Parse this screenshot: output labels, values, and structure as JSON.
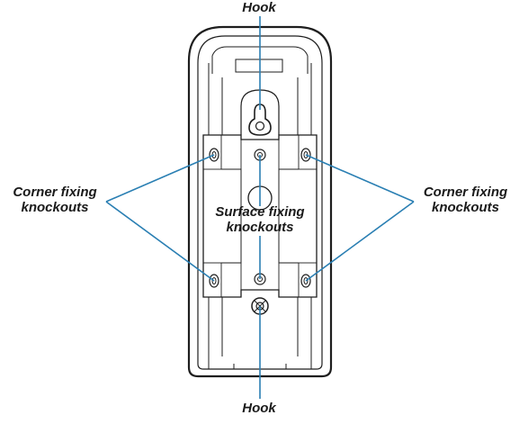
{
  "labels": {
    "hook_top": "Hook",
    "hook_bottom": "Hook",
    "corner_left_line1": "Corner fixing",
    "corner_left_line2": "knockouts",
    "corner_right_line1": "Corner fixing",
    "corner_right_line2": "knockouts",
    "surface_line1": "Surface fixing",
    "surface_line2": "knockouts"
  },
  "colors": {
    "callout_line": "#2a7fb3",
    "outline": "#1e1e1e",
    "label_text": "#1a1a1a"
  }
}
